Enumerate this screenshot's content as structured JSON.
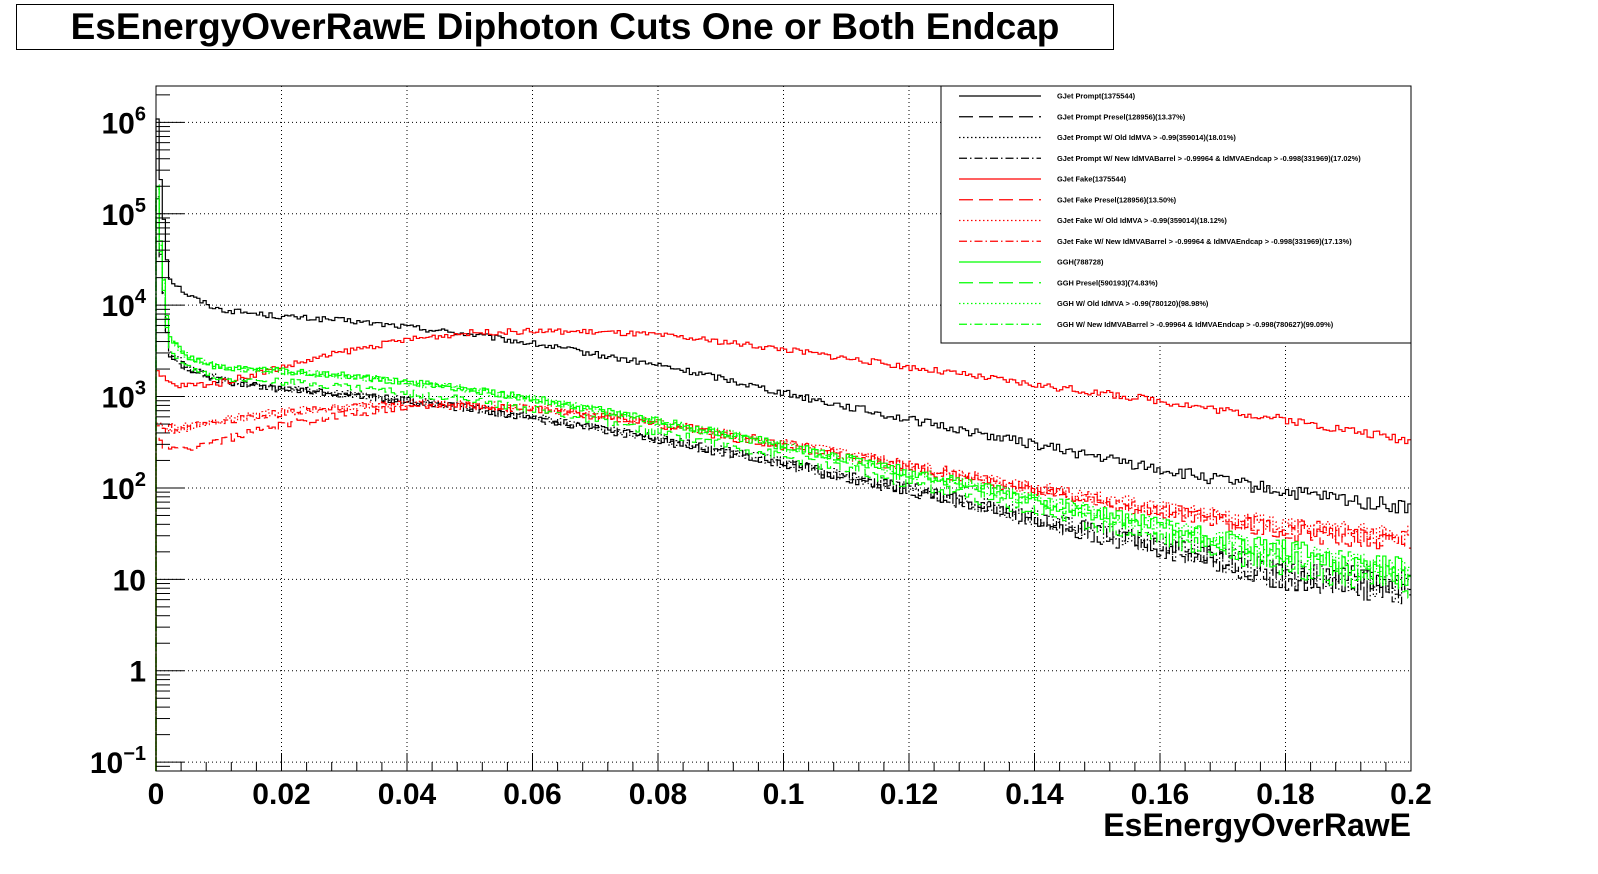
{
  "chart_data": {
    "type": "line",
    "title": "EsEnergyOverRawE Diphoton Cuts One or Both Endcap",
    "xlabel": "EsEnergyOverRawE",
    "ylabel": "",
    "xlim": [
      0,
      0.2
    ],
    "ylim": [
      0.08,
      2500000
    ],
    "yscale": "log",
    "grid": true,
    "legend_position": "top-right",
    "x_ticks": [
      {
        "value": 0,
        "label": "0"
      },
      {
        "value": 0.02,
        "label": "0.02"
      },
      {
        "value": 0.04,
        "label": "0.04"
      },
      {
        "value": 0.06,
        "label": "0.06"
      },
      {
        "value": 0.08,
        "label": "0.08"
      },
      {
        "value": 0.1,
        "label": "0.1"
      },
      {
        "value": 0.12,
        "label": "0.12"
      },
      {
        "value": 0.14,
        "label": "0.14"
      },
      {
        "value": 0.16,
        "label": "0.16"
      },
      {
        "value": 0.18,
        "label": "0.18"
      },
      {
        "value": 0.2,
        "label": "0.2"
      }
    ],
    "y_ticks": [
      {
        "value": 0.1,
        "base": "10",
        "exp": "−1"
      },
      {
        "value": 1,
        "base": "1",
        "exp": ""
      },
      {
        "value": 10,
        "base": "10",
        "exp": ""
      },
      {
        "value": 100,
        "base": "10",
        "exp": "2"
      },
      {
        "value": 1000,
        "base": "10",
        "exp": "3"
      },
      {
        "value": 10000,
        "base": "10",
        "exp": "4"
      },
      {
        "value": 100000,
        "base": "10",
        "exp": "5"
      },
      {
        "value": 1000000,
        "base": "10",
        "exp": "6"
      }
    ],
    "series": [
      {
        "name": "GJet Prompt(1375544)",
        "color": "#000000",
        "style": "solid",
        "x": [
          0,
          0.002,
          0.005,
          0.01,
          0.02,
          0.03,
          0.04,
          0.05,
          0.06,
          0.07,
          0.08,
          0.09,
          0.1,
          0.12,
          0.14,
          0.16,
          0.18,
          0.2
        ],
        "y": [
          1100000,
          20000,
          13000,
          9000,
          7500,
          6800,
          5800,
          4800,
          3800,
          2900,
          2200,
          1600,
          1100,
          560,
          300,
          160,
          90,
          60
        ]
      },
      {
        "name": "GJet Prompt Presel(128956)(13.37%)",
        "color": "#000000",
        "style": "dashed",
        "x": [
          0,
          0.002,
          0.005,
          0.01,
          0.02,
          0.03,
          0.04,
          0.05,
          0.06,
          0.07,
          0.08,
          0.09,
          0.1,
          0.12,
          0.14,
          0.16,
          0.18,
          0.2
        ],
        "y": [
          150000,
          2900,
          2000,
          1500,
          1200,
          1050,
          900,
          740,
          580,
          450,
          340,
          250,
          180,
          95,
          45,
          22,
          11,
          8
        ]
      },
      {
        "name": "GJet Prompt W/ Old IdMVA > -0.99(359014)(18.01%)",
        "color": "#000000",
        "style": "dotted",
        "x": [
          0,
          0.002,
          0.005,
          0.01,
          0.02,
          0.03,
          0.04,
          0.05,
          0.06,
          0.07,
          0.08,
          0.09,
          0.1,
          0.12,
          0.14,
          0.16,
          0.18,
          0.2
        ],
        "y": [
          160000,
          3100,
          2100,
          1550,
          1250,
          1080,
          920,
          760,
          600,
          460,
          350,
          260,
          190,
          100,
          48,
          24,
          12,
          9
        ]
      },
      {
        "name": "GJet Prompt W/ New IdMVABarrel > -0.99964 & IdMVAEndcap > -0.998(331969)(17.02%)",
        "color": "#000000",
        "style": "dashdot",
        "x": [
          0,
          0.002,
          0.005,
          0.01,
          0.02,
          0.03,
          0.04,
          0.05,
          0.06,
          0.07,
          0.08,
          0.09,
          0.1,
          0.12,
          0.14,
          0.16,
          0.18,
          0.2
        ],
        "y": [
          155000,
          3000,
          2050,
          1500,
          1220,
          1060,
          900,
          750,
          590,
          455,
          345,
          255,
          185,
          98,
          47,
          23,
          11,
          8
        ]
      },
      {
        "name": "GJet Fake(1375544)",
        "color": "#ff0000",
        "style": "solid",
        "x": [
          0,
          0.003,
          0.01,
          0.02,
          0.03,
          0.04,
          0.05,
          0.06,
          0.07,
          0.08,
          0.09,
          0.1,
          0.12,
          0.14,
          0.16,
          0.18,
          0.2
        ],
        "y": [
          1800,
          1300,
          1400,
          2100,
          3100,
          4200,
          5000,
          5200,
          5100,
          4700,
          4000,
          3300,
          2100,
          1350,
          900,
          560,
          330
        ]
      },
      {
        "name": "GJet Fake Presel(128956)(13.50%)",
        "color": "#ff0000",
        "style": "dashed",
        "x": [
          0,
          0.003,
          0.01,
          0.02,
          0.03,
          0.04,
          0.05,
          0.06,
          0.07,
          0.08,
          0.09,
          0.1,
          0.12,
          0.14,
          0.16,
          0.18,
          0.2
        ],
        "y": [
          350,
          250,
          330,
          480,
          640,
          760,
          780,
          720,
          620,
          500,
          380,
          290,
          170,
          95,
          55,
          34,
          25
        ]
      },
      {
        "name": "GJet Fake W/ Old IdMVA > -0.99(359014)(18.12%)",
        "color": "#ff0000",
        "style": "dotted",
        "x": [
          0,
          0.003,
          0.01,
          0.02,
          0.03,
          0.04,
          0.05,
          0.06,
          0.07,
          0.08,
          0.09,
          0.1,
          0.12,
          0.14,
          0.16,
          0.18,
          0.2
        ],
        "y": [
          500,
          450,
          560,
          680,
          780,
          840,
          830,
          750,
          640,
          520,
          400,
          305,
          180,
          100,
          60,
          38,
          30
        ]
      },
      {
        "name": "GJet Fake W/ New IdMVABarrel > -0.99964 & IdMVAEndcap > -0.998(331969)(17.13%)",
        "color": "#ff0000",
        "style": "dashdot",
        "x": [
          0,
          0.003,
          0.01,
          0.02,
          0.03,
          0.04,
          0.05,
          0.06,
          0.07,
          0.08,
          0.09,
          0.1,
          0.12,
          0.14,
          0.16,
          0.18,
          0.2
        ],
        "y": [
          480,
          430,
          540,
          660,
          760,
          820,
          810,
          735,
          630,
          510,
          395,
          300,
          178,
          98,
          58,
          36,
          28
        ]
      },
      {
        "name": "GGH(788728)",
        "color": "#00ff00",
        "style": "solid",
        "x": [
          0,
          0.002,
          0.005,
          0.01,
          0.02,
          0.03,
          0.04,
          0.05,
          0.06,
          0.07,
          0.08,
          0.09,
          0.1,
          0.12,
          0.14,
          0.16,
          0.18,
          0.2
        ],
        "y": [
          200000,
          4500,
          2800,
          2100,
          1900,
          1700,
          1450,
          1200,
          950,
          720,
          540,
          400,
          290,
          150,
          75,
          38,
          20,
          12
        ]
      },
      {
        "name": "GGH Presel(590193)(74.83%)",
        "color": "#00ff00",
        "style": "dashed",
        "x": [
          0,
          0.002,
          0.005,
          0.01,
          0.02,
          0.03,
          0.04,
          0.05,
          0.06,
          0.07,
          0.08,
          0.09,
          0.1,
          0.12,
          0.14,
          0.16,
          0.18,
          0.2
        ],
        "y": [
          150000,
          3400,
          2100,
          1600,
          1450,
          1300,
          1100,
          920,
          720,
          550,
          410,
          305,
          220,
          115,
          58,
          29,
          15,
          9
        ]
      },
      {
        "name": "GGH W/ Old IdMVA > -0.99(780120)(98.98%)",
        "color": "#00ff00",
        "style": "dotted",
        "x": [
          0,
          0.002,
          0.005,
          0.01,
          0.02,
          0.03,
          0.04,
          0.05,
          0.06,
          0.07,
          0.08,
          0.09,
          0.1,
          0.12,
          0.14,
          0.16,
          0.18,
          0.2
        ],
        "y": [
          195000,
          4400,
          2750,
          2080,
          1880,
          1680,
          1430,
          1190,
          940,
          715,
          535,
          398,
          288,
          148,
          74,
          37,
          19,
          11
        ]
      },
      {
        "name": "GGH W/ New IdMVABarrel > -0.99964 & IdMVAEndcap > -0.998(780627)(99.09%)",
        "color": "#00ff00",
        "style": "dashdot",
        "x": [
          0,
          0.002,
          0.005,
          0.01,
          0.02,
          0.03,
          0.04,
          0.05,
          0.06,
          0.07,
          0.08,
          0.09,
          0.1,
          0.12,
          0.14,
          0.16,
          0.18,
          0.2
        ],
        "y": [
          196000,
          4420,
          2760,
          2090,
          1885,
          1690,
          1440,
          1195,
          945,
          718,
          537,
          399,
          289,
          149,
          74,
          37,
          19,
          11
        ]
      }
    ]
  }
}
